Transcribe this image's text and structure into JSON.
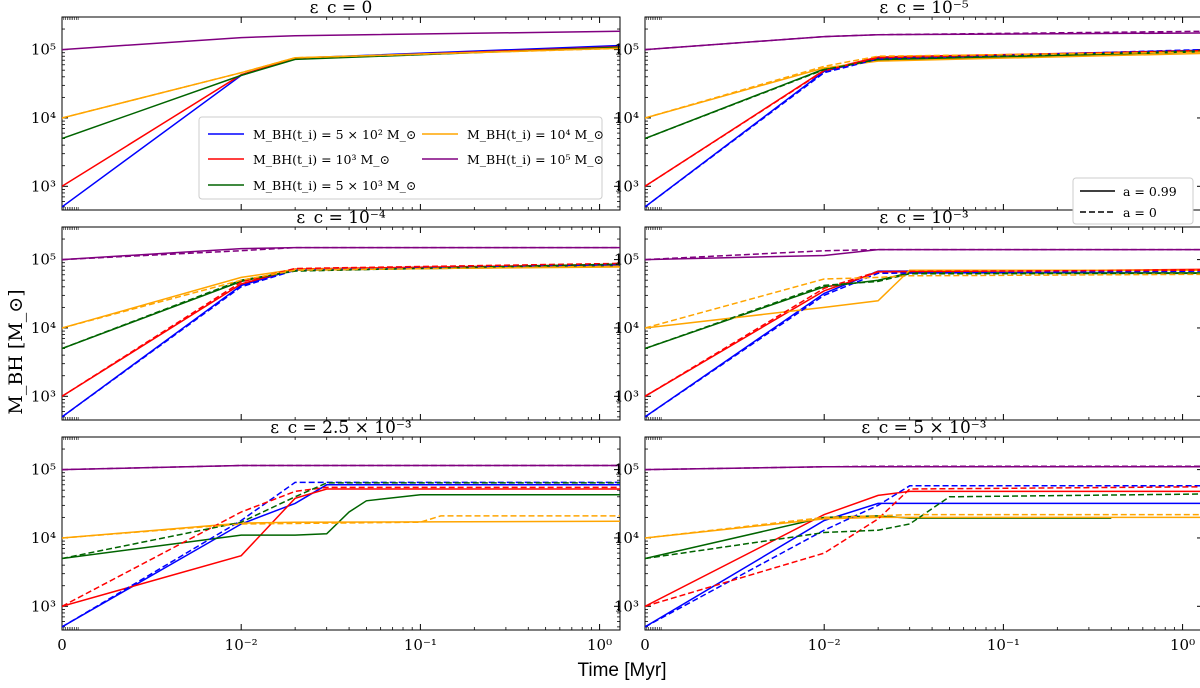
{
  "figure": {
    "xlabel": "Time [Myr]",
    "ylabel": "M_BH [M_⊙]",
    "colors": {
      "blue": "#0000ff",
      "red": "#ff0000",
      "green": "#006400",
      "orange": "#ffa500",
      "purple": "#800080"
    }
  },
  "legend_mass": [
    {
      "color_key": "blue",
      "label": "M_BH(t_i) = 5 × 10² M_⊙"
    },
    {
      "color_key": "red",
      "label": "M_BH(t_i) = 10³ M_⊙"
    },
    {
      "color_key": "green",
      "label": "M_BH(t_i) = 5 × 10³ M_⊙"
    },
    {
      "color_key": "orange",
      "label": "M_BH(t_i) = 10⁴ M_⊙"
    },
    {
      "color_key": "purple",
      "label": "M_BH(t_i) = 10⁵ M_⊙"
    }
  ],
  "legend_spin": [
    {
      "style": "solid",
      "label": "a = 0.99"
    },
    {
      "style": "dashed",
      "label": "a = 0"
    }
  ],
  "chart_data": [
    {
      "type": "line",
      "title": "ε_c = 0",
      "xscale": "symlog",
      "xlim": [
        0,
        1.3
      ],
      "yscale": "log",
      "ylim": [
        450,
        300000
      ],
      "xticks": [
        "0",
        "10⁻²",
        "10⁻¹",
        "10⁰"
      ],
      "yticks": [
        "10³",
        "10⁴",
        "10⁵"
      ],
      "series": [
        {
          "color_key": "blue",
          "style": "solid",
          "x": [
            0,
            0.01,
            0.02,
            1.3
          ],
          "y": [
            500,
            42000,
            75000,
            115000
          ]
        },
        {
          "color_key": "red",
          "style": "solid",
          "x": [
            0,
            0.01,
            0.02,
            1.3
          ],
          "y": [
            1000,
            43000,
            74000,
            110000
          ]
        },
        {
          "color_key": "green",
          "style": "solid",
          "x": [
            0,
            0.01,
            0.02,
            1.3
          ],
          "y": [
            5000,
            42000,
            72000,
            108000
          ]
        },
        {
          "color_key": "orange",
          "style": "solid",
          "x": [
            0,
            0.01,
            0.02,
            1.3
          ],
          "y": [
            10000,
            46000,
            76000,
            105000
          ]
        },
        {
          "color_key": "purple",
          "style": "solid",
          "x": [
            0,
            0.01,
            0.02,
            1.3
          ],
          "y": [
            100000,
            150000,
            160000,
            185000
          ]
        },
        {
          "color_key": "orange",
          "style": "dashed",
          "x": [
            0,
            0.01,
            0.02,
            1.3
          ],
          "y": [
            10000,
            46000,
            76000,
            104000
          ]
        }
      ]
    },
    {
      "type": "line",
      "title": "ε_c = 10⁻⁵",
      "xscale": "symlog",
      "xlim": [
        0,
        1.3
      ],
      "yscale": "log",
      "ylim": [
        450,
        300000
      ],
      "xticks": [
        "0",
        "10⁻²",
        "10⁻¹",
        "10⁰"
      ],
      "yticks": [
        "10³",
        "10⁴",
        "10⁵"
      ],
      "series": [
        {
          "color_key": "blue",
          "style": "solid",
          "x": [
            0,
            0.01,
            0.02,
            1.3
          ],
          "y": [
            500,
            48000,
            75000,
            98000
          ]
        },
        {
          "color_key": "red",
          "style": "solid",
          "x": [
            0,
            0.01,
            0.02,
            1.3
          ],
          "y": [
            1000,
            50000,
            78000,
            96000
          ]
        },
        {
          "color_key": "green",
          "style": "solid",
          "x": [
            0,
            0.01,
            0.02,
            1.3
          ],
          "y": [
            5000,
            52000,
            70000,
            93000
          ]
        },
        {
          "color_key": "orange",
          "style": "solid",
          "x": [
            0,
            0.01,
            0.02,
            1.3
          ],
          "y": [
            10000,
            54000,
            68000,
            88000
          ]
        },
        {
          "color_key": "purple",
          "style": "solid",
          "x": [
            0,
            0.01,
            0.02,
            1.3
          ],
          "y": [
            100000,
            155000,
            165000,
            175000
          ]
        },
        {
          "color_key": "blue",
          "style": "dashed",
          "x": [
            0,
            0.01,
            0.02,
            1.3
          ],
          "y": [
            500,
            46000,
            73000,
            100000
          ]
        },
        {
          "color_key": "red",
          "style": "dashed",
          "x": [
            0,
            0.01,
            0.02,
            1.3
          ],
          "y": [
            1000,
            49000,
            76000,
            97000
          ]
        },
        {
          "color_key": "green",
          "style": "dashed",
          "x": [
            0,
            0.01,
            0.02,
            1.3
          ],
          "y": [
            5000,
            51000,
            72000,
            95000
          ]
        },
        {
          "color_key": "orange",
          "style": "dashed",
          "x": [
            0,
            0.01,
            0.02,
            1.3
          ],
          "y": [
            10000,
            57000,
            80000,
            92000
          ]
        },
        {
          "color_key": "purple",
          "style": "dashed",
          "x": [
            0,
            0.01,
            0.02,
            1.3
          ],
          "y": [
            100000,
            155000,
            165000,
            185000
          ]
        }
      ]
    },
    {
      "type": "line",
      "title": "ε_c = 10⁻⁴",
      "xscale": "symlog",
      "xlim": [
        0,
        1.3
      ],
      "yscale": "log",
      "ylim": [
        450,
        300000
      ],
      "xticks": [
        "0",
        "10⁻²",
        "10⁻¹",
        "10⁰"
      ],
      "yticks": [
        "10³",
        "10⁴",
        "10⁵"
      ],
      "series": [
        {
          "color_key": "blue",
          "style": "solid",
          "x": [
            0,
            0.01,
            0.02,
            1.3
          ],
          "y": [
            500,
            42000,
            72000,
            82000
          ]
        },
        {
          "color_key": "red",
          "style": "solid",
          "x": [
            0,
            0.01,
            0.02,
            1.3
          ],
          "y": [
            1000,
            44000,
            73000,
            85000
          ]
        },
        {
          "color_key": "green",
          "style": "solid",
          "x": [
            0,
            0.01,
            0.02,
            1.3
          ],
          "y": [
            5000,
            48000,
            70000,
            80000
          ]
        },
        {
          "color_key": "orange",
          "style": "solid",
          "x": [
            0,
            0.01,
            0.02,
            1.3
          ],
          "y": [
            10000,
            55000,
            72000,
            78000
          ]
        },
        {
          "color_key": "purple",
          "style": "solid",
          "x": [
            0,
            0.01,
            0.02,
            1.3
          ],
          "y": [
            100000,
            145000,
            150000,
            150000
          ]
        },
        {
          "color_key": "blue",
          "style": "dashed",
          "x": [
            0,
            0.01,
            0.02,
            1.3
          ],
          "y": [
            500,
            40000,
            70000,
            84000
          ]
        },
        {
          "color_key": "red",
          "style": "dashed",
          "x": [
            0,
            0.01,
            0.02,
            1.3
          ],
          "y": [
            1000,
            47000,
            74000,
            88000
          ]
        },
        {
          "color_key": "green",
          "style": "dashed",
          "x": [
            0,
            0.01,
            0.02,
            1.3
          ],
          "y": [
            5000,
            50000,
            68000,
            86000
          ]
        },
        {
          "color_key": "orange",
          "style": "dashed",
          "x": [
            0,
            0.01,
            0.02,
            1.3
          ],
          "y": [
            10000,
            50000,
            70000,
            80000
          ]
        },
        {
          "color_key": "purple",
          "style": "dashed",
          "x": [
            0,
            0.01,
            0.02,
            1.3
          ],
          "y": [
            100000,
            135000,
            150000,
            150000
          ]
        }
      ]
    },
    {
      "type": "line",
      "title": "ε_c = 10⁻³",
      "xscale": "symlog",
      "xlim": [
        0,
        1.3
      ],
      "yscale": "log",
      "ylim": [
        450,
        300000
      ],
      "xticks": [
        "0",
        "10⁻²",
        "10⁻¹",
        "10⁰"
      ],
      "yticks": [
        "10³",
        "10⁴",
        "10⁵"
      ],
      "series": [
        {
          "color_key": "blue",
          "style": "solid",
          "x": [
            0,
            0.01,
            0.02,
            1.3
          ],
          "y": [
            500,
            32000,
            68000,
            70000
          ]
        },
        {
          "color_key": "red",
          "style": "solid",
          "x": [
            0,
            0.01,
            0.02,
            1.3
          ],
          "y": [
            1000,
            35000,
            66000,
            72000
          ]
        },
        {
          "color_key": "green",
          "style": "solid",
          "x": [
            0,
            0.01,
            0.02,
            0.03,
            1.3
          ],
          "y": [
            5000,
            40000,
            50000,
            64000,
            64000
          ]
        },
        {
          "color_key": "orange",
          "style": "solid",
          "x": [
            0,
            0.01,
            0.02,
            0.03,
            1.3
          ],
          "y": [
            10000,
            20000,
            25000,
            70000,
            70000
          ]
        },
        {
          "color_key": "purple",
          "style": "solid",
          "x": [
            0,
            0.01,
            0.02,
            1.3
          ],
          "y": [
            100000,
            115000,
            140000,
            140000
          ]
        },
        {
          "color_key": "blue",
          "style": "dashed",
          "x": [
            0,
            0.01,
            0.02,
            1.3
          ],
          "y": [
            500,
            30000,
            63000,
            68000
          ]
        },
        {
          "color_key": "red",
          "style": "dashed",
          "x": [
            0,
            0.01,
            0.02,
            1.3
          ],
          "y": [
            1000,
            38000,
            67000,
            70000
          ]
        },
        {
          "color_key": "green",
          "style": "dashed",
          "x": [
            0,
            0.01,
            0.02,
            0.03,
            1.3
          ],
          "y": [
            5000,
            42000,
            48000,
            62000,
            63000
          ]
        },
        {
          "color_key": "orange",
          "style": "dashed",
          "x": [
            0,
            0.01,
            0.02,
            0.03,
            1.3
          ],
          "y": [
            10000,
            52000,
            55000,
            58000,
            61000
          ]
        },
        {
          "color_key": "purple",
          "style": "dashed",
          "x": [
            0,
            0.01,
            0.02,
            1.3
          ],
          "y": [
            100000,
            135000,
            140000,
            140000
          ]
        }
      ]
    },
    {
      "type": "line",
      "title": "ε_c = 2.5 × 10⁻³",
      "xscale": "symlog",
      "xlim": [
        0,
        1.3
      ],
      "yscale": "log",
      "ylim": [
        450,
        300000
      ],
      "xticks": [
        "0",
        "10⁻²",
        "10⁻¹",
        "10⁰"
      ],
      "yticks": [
        "10³",
        "10⁴",
        "10⁵"
      ],
      "series": [
        {
          "color_key": "blue",
          "style": "solid",
          "x": [
            0,
            0.01,
            0.02,
            0.03,
            1.3
          ],
          "y": [
            500,
            16000,
            32000,
            60000,
            60000
          ]
        },
        {
          "color_key": "red",
          "style": "solid",
          "x": [
            0,
            0.01,
            0.02,
            0.03,
            1.3
          ],
          "y": [
            1000,
            5500,
            38000,
            52000,
            52000
          ]
        },
        {
          "color_key": "green",
          "style": "solid",
          "x": [
            0,
            0.01,
            0.02,
            0.03,
            0.04,
            0.05,
            0.1,
            1.3
          ],
          "y": [
            5000,
            11000,
            11000,
            11500,
            24000,
            35000,
            43000,
            43000
          ]
        },
        {
          "color_key": "orange",
          "style": "solid",
          "x": [
            0,
            0.01,
            0.02,
            1.3
          ],
          "y": [
            10000,
            16500,
            17000,
            17500
          ]
        },
        {
          "color_key": "purple",
          "style": "solid",
          "x": [
            0,
            0.01,
            0.02,
            1.3
          ],
          "y": [
            100000,
            115000,
            115000,
            115000
          ]
        },
        {
          "color_key": "blue",
          "style": "dashed",
          "x": [
            0,
            0.01,
            0.02,
            0.03,
            1.3
          ],
          "y": [
            500,
            18000,
            65000,
            65000,
            65000
          ]
        },
        {
          "color_key": "red",
          "style": "dashed",
          "x": [
            0,
            0.01,
            0.02,
            0.03,
            1.3
          ],
          "y": [
            1000,
            24000,
            48000,
            55000,
            55000
          ]
        },
        {
          "color_key": "green",
          "style": "dashed",
          "x": [
            0,
            0.01,
            0.02,
            0.03,
            1.3
          ],
          "y": [
            5000,
            17000,
            40000,
            64000,
            64000
          ]
        },
        {
          "color_key": "orange",
          "style": "dashed",
          "x": [
            0,
            0.01,
            0.1,
            0.13,
            1.3
          ],
          "y": [
            10000,
            16000,
            17000,
            21000,
            21000
          ]
        },
        {
          "color_key": "purple",
          "style": "dashed",
          "x": [
            0,
            0.01,
            0.02,
            1.3
          ],
          "y": [
            100000,
            115000,
            115000,
            115000
          ]
        }
      ]
    },
    {
      "type": "line",
      "title": "ε_c = 5 × 10⁻³",
      "xscale": "symlog",
      "xlim": [
        0,
        1.3
      ],
      "yscale": "log",
      "ylim": [
        450,
        300000
      ],
      "xticks": [
        "0",
        "10⁻²",
        "10⁻¹",
        "10⁰"
      ],
      "yticks": [
        "10³",
        "10⁴",
        "10⁵"
      ],
      "series": [
        {
          "color_key": "blue",
          "style": "solid",
          "x": [
            0,
            0.01,
            0.02,
            0.03,
            1.3
          ],
          "y": [
            500,
            18000,
            32000,
            32000,
            32000
          ]
        },
        {
          "color_key": "red",
          "style": "solid",
          "x": [
            0,
            0.01,
            0.02,
            0.03,
            1.3
          ],
          "y": [
            1000,
            22000,
            42000,
            48000,
            48000
          ]
        },
        {
          "color_key": "green",
          "style": "solid",
          "x": [
            0,
            0.01,
            0.02,
            0.03,
            0.4
          ],
          "y": [
            5000,
            20000,
            21000,
            19500,
            19500
          ]
        },
        {
          "color_key": "orange",
          "style": "solid",
          "x": [
            0,
            0.01,
            0.02,
            1.3
          ],
          "y": [
            10000,
            19000,
            20000,
            20000
          ]
        },
        {
          "color_key": "purple",
          "style": "solid",
          "x": [
            0,
            0.01,
            0.02,
            1.3
          ],
          "y": [
            100000,
            110000,
            110000,
            110000
          ]
        },
        {
          "color_key": "blue",
          "style": "dashed",
          "x": [
            0,
            0.01,
            0.02,
            0.03,
            1.3
          ],
          "y": [
            500,
            13000,
            30000,
            58000,
            58000
          ]
        },
        {
          "color_key": "red",
          "style": "dashed",
          "x": [
            0,
            0.01,
            0.02,
            0.03,
            1.3
          ],
          "y": [
            1000,
            6000,
            19000,
            52000,
            56000
          ]
        },
        {
          "color_key": "green",
          "style": "dashed",
          "x": [
            0,
            0.01,
            0.02,
            0.03,
            0.05,
            1.3
          ],
          "y": [
            5000,
            12000,
            13000,
            16000,
            40000,
            44000
          ]
        },
        {
          "color_key": "orange",
          "style": "dashed",
          "x": [
            0,
            0.01,
            0.02,
            0.03,
            1.3
          ],
          "y": [
            10000,
            20000,
            21000,
            22000,
            22000
          ]
        },
        {
          "color_key": "purple",
          "style": "dashed",
          "x": [
            0,
            0.01,
            0.02,
            1.3
          ],
          "y": [
            100000,
            110000,
            112000,
            112000
          ]
        }
      ]
    }
  ]
}
